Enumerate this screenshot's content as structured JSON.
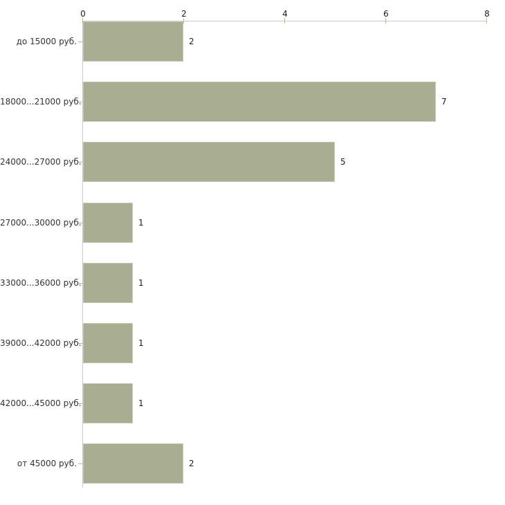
{
  "chart_data": {
    "type": "bar",
    "orientation": "horizontal",
    "title": "",
    "xlabel": "",
    "ylabel": "",
    "categories": [
      "до 15000 руб.",
      "18000...21000 руб.",
      "24000...27000 руб.",
      "27000...30000 руб.",
      "33000...36000 руб.",
      "39000...42000 руб.",
      "42000...45000 руб.",
      "от 45000 руб."
    ],
    "values": [
      2,
      7,
      5,
      1,
      1,
      1,
      1,
      2
    ],
    "value_labels": [
      "2",
      "7",
      "5",
      "1",
      "1",
      "1",
      "1",
      "2"
    ],
    "xlim": [
      0,
      8
    ],
    "x_ticks": [
      0,
      2,
      4,
      6,
      8
    ],
    "x_tick_labels": [
      "0",
      "2",
      "4",
      "6",
      "8"
    ],
    "axis_position": "top",
    "grid": false,
    "legend": false,
    "colors": {
      "bar_fill": "#a9ae92",
      "bar_border": "#c4c7b3",
      "axis_line": "#c9c9c9",
      "tick_mark": "#b6ba8c",
      "tick_label_text": "#1a1a1a",
      "category_text": "#333333",
      "value_text": "#1a1a1a",
      "background": "#ffffff"
    }
  }
}
